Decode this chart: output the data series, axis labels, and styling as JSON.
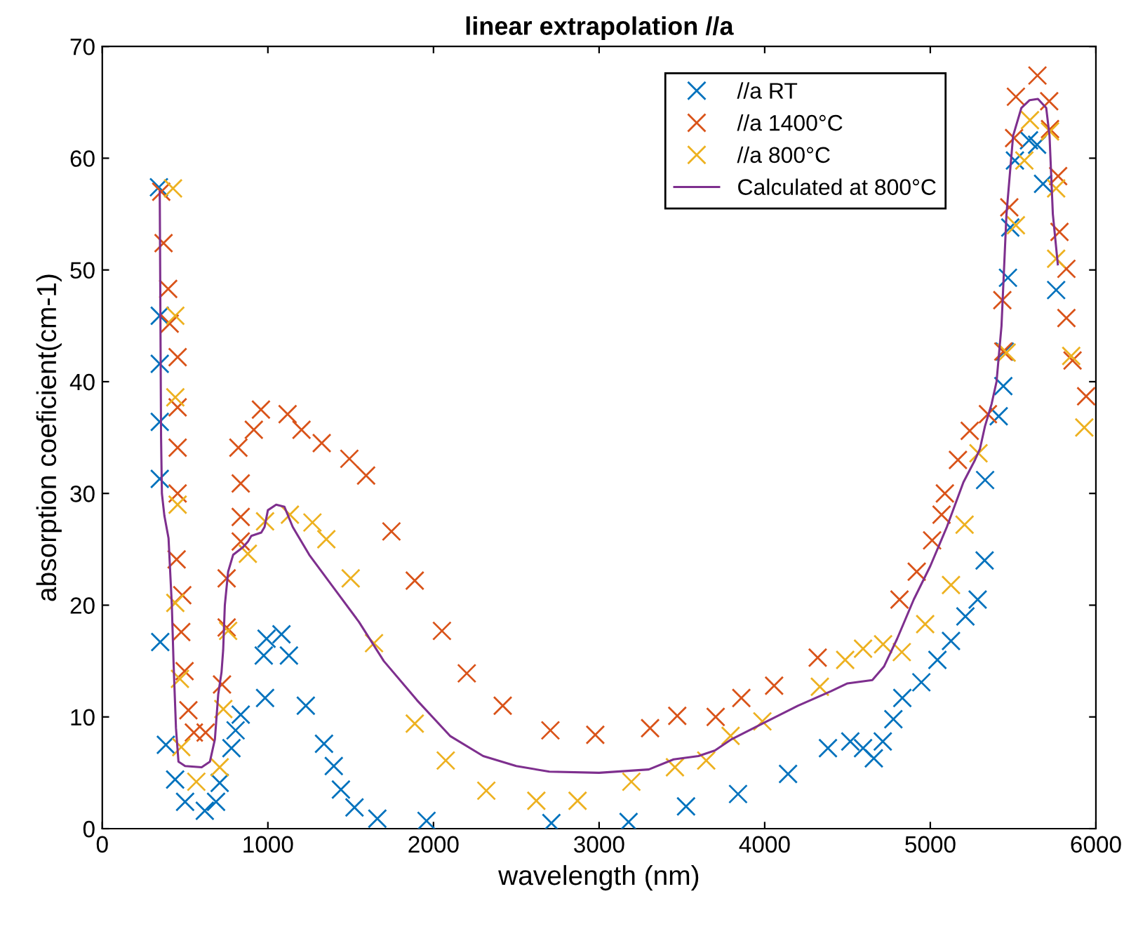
{
  "chart_data": {
    "type": "scatter",
    "title": "linear extrapolation //a",
    "xlabel": "wavelength (nm)",
    "ylabel": "absorption coeficient(cm-1)",
    "xlim": [
      0,
      6000
    ],
    "xticks": [
      0,
      1000,
      2000,
      3000,
      4000,
      5000,
      6000
    ],
    "ylim": [
      0,
      70
    ],
    "yticks": [
      0,
      10,
      20,
      30,
      40,
      50,
      60,
      70
    ],
    "grid": false,
    "legend": "top right",
    "marker": "cross",
    "series": [
      {
        "name": "//a RT",
        "color": "#0072bd",
        "x": [
          342,
          347,
          347,
          347,
          347,
          350,
          384,
          440,
          500,
          619,
          687,
          709,
          780,
          805,
          836,
          975,
          983,
          992,
          1082,
          1127,
          1229,
          1339,
          1398,
          1441,
          1523,
          1661,
          1958,
          2712,
          3178,
          3525,
          3839,
          4141,
          4382,
          4517,
          4594,
          4659,
          4713,
          4777,
          4831,
          4946,
          5043,
          5125,
          5212,
          5286,
          5328,
          5331,
          5413,
          5441,
          5449,
          5469,
          5483,
          5511,
          5596,
          5645,
          5681,
          5760
        ],
        "values": [
          57.4,
          45.9,
          41.6,
          36.4,
          31.3,
          16.7,
          7.5,
          4.4,
          2.4,
          1.6,
          2.4,
          4.1,
          7.2,
          8.8,
          10.2,
          15.5,
          11.7,
          17.0,
          17.4,
          15.5,
          11.0,
          7.6,
          5.6,
          3.5,
          1.9,
          0.9,
          0.7,
          0.5,
          0.6,
          2.0,
          3.1,
          4.9,
          7.2,
          7.8,
          7.2,
          6.3,
          7.8,
          9.8,
          11.7,
          13.1,
          15.1,
          16.8,
          19.0,
          20.5,
          24.0,
          31.2,
          36.9,
          39.6,
          42.7,
          49.3,
          53.8,
          59.8,
          61.6,
          61.2,
          57.7,
          48.2
        ]
      },
      {
        "name": "//a 1400°C",
        "color": "#d95319",
        "x": [
          356,
          370,
          398,
          407,
          455,
          455,
          455,
          455,
          449,
          483,
          477,
          497,
          520,
          553,
          624,
          723,
          751,
          751,
          836,
          836,
          836,
          822,
          915,
          958,
          1119,
          1203,
          1325,
          1492,
          1593,
          1746,
          1887,
          2051,
          2201,
          2418,
          2706,
          2977,
          3308,
          3472,
          3704,
          3859,
          4057,
          4320,
          4814,
          4918,
          5011,
          5068,
          5088,
          5167,
          5238,
          5348,
          5441,
          5435,
          5477,
          5506,
          5517,
          5647,
          5718,
          5723,
          5772,
          5780,
          5822,
          5822,
          5859,
          5941
        ],
        "values": [
          57.0,
          52.4,
          48.3,
          45.2,
          42.2,
          37.7,
          34.1,
          30.0,
          24.1,
          20.9,
          17.6,
          14.1,
          10.6,
          8.6,
          8.6,
          12.9,
          18.0,
          22.4,
          25.7,
          27.9,
          30.9,
          34.1,
          35.7,
          37.5,
          37.1,
          35.7,
          34.5,
          33.1,
          31.6,
          26.6,
          22.2,
          17.7,
          13.9,
          11.0,
          8.8,
          8.4,
          9.0,
          10.1,
          10.0,
          11.7,
          12.8,
          15.3,
          20.5,
          23.0,
          25.8,
          28.1,
          30.0,
          33.0,
          35.6,
          37.1,
          42.7,
          47.3,
          55.6,
          61.8,
          65.5,
          67.4,
          65.1,
          62.6,
          58.4,
          53.4,
          50.1,
          45.7,
          41.9,
          38.7
        ]
      },
      {
        "name": "//a 800°C",
        "color": "#edb120",
        "x": [
          427,
          441,
          441,
          455,
          441,
          469,
          477,
          568,
          709,
          731,
          760,
          879,
          983,
          1133,
          1269,
          1353,
          1500,
          1641,
          1887,
          2074,
          2319,
          2621,
          2870,
          3195,
          3458,
          3647,
          3794,
          3986,
          4333,
          4486,
          4594,
          4715,
          4828,
          4969,
          5125,
          5207,
          5291,
          5461,
          5517,
          5568,
          5602,
          5723,
          5760,
          5760,
          5851,
          5930
        ],
        "values": [
          57.3,
          45.9,
          38.6,
          29.0,
          20.2,
          13.4,
          7.3,
          4.2,
          5.5,
          10.7,
          17.7,
          24.6,
          27.5,
          28.1,
          27.4,
          25.9,
          22.4,
          16.6,
          9.4,
          6.1,
          3.4,
          2.5,
          2.5,
          4.2,
          5.5,
          6.1,
          8.3,
          9.6,
          12.7,
          15.1,
          16.1,
          16.5,
          15.8,
          18.3,
          21.8,
          27.2,
          33.6,
          42.6,
          54.0,
          59.8,
          63.4,
          62.4,
          57.3,
          51.0,
          42.3,
          35.9
        ]
      },
      {
        "name": "Calculated at 800°C",
        "type": "line",
        "color": "#7e2f8e",
        "marker": "none",
        "line_style": "solid",
        "x": [
          347,
          355,
          360,
          375,
          400,
          420,
          430,
          445,
          460,
          500,
          600,
          650,
          680,
          700,
          720,
          730,
          740,
          760,
          790,
          850,
          880,
          900,
          960,
          980,
          1000,
          1050,
          1100,
          1150,
          1250,
          1400,
          1550,
          1700,
          1900,
          2100,
          2300,
          2500,
          2700,
          3000,
          3300,
          3450,
          3600,
          3700,
          3800,
          4000,
          4200,
          4400,
          4500,
          4650,
          4720,
          4800,
          4900,
          5000,
          5100,
          5200,
          5270,
          5300,
          5330,
          5370,
          5400,
          5430,
          5460,
          5500,
          5550,
          5600,
          5650,
          5700,
          5720,
          5740,
          5770
        ],
        "values": [
          57,
          35,
          30,
          28,
          26,
          20,
          15,
          9,
          6,
          5.6,
          5.5,
          6,
          8,
          12,
          14,
          16,
          20,
          23,
          24.5,
          25.2,
          25.7,
          26.2,
          26.5,
          27,
          28.5,
          29,
          28.8,
          27,
          24.5,
          21.5,
          18.5,
          15,
          11.5,
          8.3,
          6.5,
          5.6,
          5.1,
          5,
          5.3,
          6.2,
          6.5,
          7,
          8,
          9.5,
          11,
          12.3,
          13,
          13.3,
          14.5,
          17,
          20.5,
          23.5,
          27,
          31,
          33,
          34,
          36,
          38,
          40,
          45,
          55,
          62,
          64.5,
          65.2,
          65.3,
          64.5,
          62,
          55,
          50.5
        ]
      }
    ]
  }
}
